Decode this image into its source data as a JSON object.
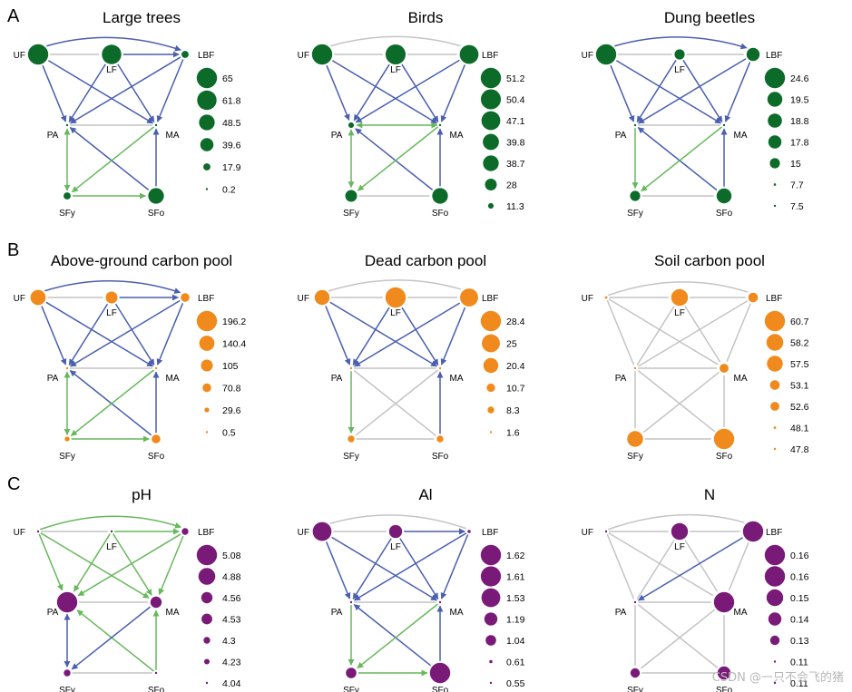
{
  "figure": {
    "section_labels": [
      "A",
      "B",
      "C"
    ],
    "node_labels": {
      "UF": "UF",
      "LF": "LF",
      "LBF": "LBF",
      "PA": "PA",
      "MA": "MA",
      "SFy": "SFy",
      "SFo": "SFo"
    },
    "watermark": "CSDN @一只不会飞的猪"
  },
  "colors": {
    "green": "#0d6b2a",
    "orange": "#f08a1c",
    "purple": "#7a1a78",
    "blue_edge": "#4a5fae",
    "green_edge": "#67b85c",
    "grey_edge": "#c4c4c4"
  },
  "panels": [
    {
      "title": "Large trees",
      "color": "green",
      "node_sizes": {
        "UF": 65,
        "LF": 61.8,
        "LBF": 17.9,
        "PA": 0.2,
        "MA": 0.2,
        "SFy": 17.9,
        "SFo": 48.5
      },
      "legend": [
        "65",
        "61.8",
        "48.5",
        "39.6",
        "17.9",
        "0.2"
      ],
      "edges": [
        [
          "UF",
          "LBF",
          "blue",
          "curve"
        ],
        [
          "UF",
          "LF",
          "grey",
          "line"
        ],
        [
          "LF",
          "LBF",
          "blue",
          "line"
        ],
        [
          "UF",
          "PA",
          "blue",
          "line"
        ],
        [
          "UF",
          "MA",
          "blue",
          "line"
        ],
        [
          "LF",
          "PA",
          "blue",
          "line"
        ],
        [
          "LF",
          "MA",
          "blue",
          "line"
        ],
        [
          "LBF",
          "PA",
          "blue",
          "line"
        ],
        [
          "LBF",
          "MA",
          "blue",
          "line"
        ],
        [
          "PA",
          "MA",
          "grey",
          "line"
        ],
        [
          "SFy",
          "PA",
          "green",
          "both"
        ],
        [
          "SFo",
          "PA",
          "blue",
          "line"
        ],
        [
          "SFo",
          "MA",
          "blue",
          "line"
        ],
        [
          "MA",
          "SFy",
          "green",
          "line"
        ],
        [
          "SFy",
          "SFo",
          "green",
          "line"
        ]
      ]
    },
    {
      "title": "Birds",
      "color": "green",
      "node_sizes": {
        "UF": 51.2,
        "LF": 50.4,
        "LBF": 47.1,
        "PA": 11.3,
        "MA": 2,
        "SFy": 28,
        "SFo": 38.7
      },
      "legend": [
        "51.2",
        "50.4",
        "47.1",
        "39.8",
        "38.7",
        "28",
        "11.3"
      ],
      "edges": [
        [
          "UF",
          "LBF",
          "grey",
          "curve"
        ],
        [
          "UF",
          "LF",
          "grey",
          "line"
        ],
        [
          "LF",
          "LBF",
          "grey",
          "line"
        ],
        [
          "UF",
          "PA",
          "blue",
          "line"
        ],
        [
          "UF",
          "MA",
          "blue",
          "line"
        ],
        [
          "LF",
          "PA",
          "blue",
          "line"
        ],
        [
          "LF",
          "MA",
          "blue",
          "line"
        ],
        [
          "LBF",
          "PA",
          "blue",
          "line"
        ],
        [
          "LBF",
          "MA",
          "blue",
          "line"
        ],
        [
          "MA",
          "PA",
          "green",
          "both"
        ],
        [
          "PA",
          "SFy",
          "green",
          "both"
        ],
        [
          "SFo",
          "PA",
          "blue",
          "line"
        ],
        [
          "SFo",
          "MA",
          "blue",
          "line"
        ],
        [
          "MA",
          "SFy",
          "green",
          "line"
        ],
        [
          "SFy",
          "SFo",
          "grey",
          "line"
        ]
      ]
    },
    {
      "title": "Dung beetles",
      "color": "green",
      "node_sizes": {
        "UF": 24.6,
        "LF": 15,
        "LBF": 17.8,
        "PA": 7.5,
        "MA": 7.5,
        "SFy": 15,
        "SFo": 19.5
      },
      "legend": [
        "24.6",
        "19.5",
        "18.8",
        "17.8",
        "15",
        "7.7",
        "7.5"
      ],
      "edges": [
        [
          "UF",
          "LBF",
          "blue",
          "curve"
        ],
        [
          "UF",
          "LF",
          "grey",
          "line"
        ],
        [
          "LF",
          "LBF",
          "grey",
          "line"
        ],
        [
          "UF",
          "PA",
          "blue",
          "line"
        ],
        [
          "UF",
          "MA",
          "blue",
          "line"
        ],
        [
          "LF",
          "PA",
          "blue",
          "line"
        ],
        [
          "LF",
          "MA",
          "blue",
          "line"
        ],
        [
          "LBF",
          "PA",
          "blue",
          "line"
        ],
        [
          "LBF",
          "MA",
          "blue",
          "line"
        ],
        [
          "PA",
          "MA",
          "grey",
          "line"
        ],
        [
          "PA",
          "SFy",
          "green",
          "line"
        ],
        [
          "SFo",
          "PA",
          "blue",
          "line"
        ],
        [
          "SFo",
          "MA",
          "blue",
          "line"
        ],
        [
          "MA",
          "SFy",
          "green",
          "line"
        ],
        [
          "SFy",
          "SFo",
          "grey",
          "line"
        ]
      ]
    },
    {
      "title": "Above-ground carbon pool",
      "color": "orange",
      "node_sizes": {
        "UF": 140.4,
        "LF": 105,
        "LBF": 70.8,
        "PA": 0.5,
        "MA": 0.5,
        "SFy": 29.6,
        "SFo": 70.8
      },
      "legend": [
        "196.2",
        "140.4",
        "105",
        "70.8",
        "29.6",
        "0.5"
      ],
      "edges": [
        [
          "UF",
          "LBF",
          "blue",
          "curve"
        ],
        [
          "UF",
          "LF",
          "grey",
          "line"
        ],
        [
          "LF",
          "LBF",
          "blue",
          "line"
        ],
        [
          "UF",
          "PA",
          "blue",
          "line"
        ],
        [
          "UF",
          "MA",
          "blue",
          "line"
        ],
        [
          "LF",
          "PA",
          "blue",
          "line"
        ],
        [
          "LF",
          "MA",
          "blue",
          "line"
        ],
        [
          "LBF",
          "PA",
          "blue",
          "line"
        ],
        [
          "LBF",
          "MA",
          "blue",
          "line"
        ],
        [
          "PA",
          "MA",
          "grey",
          "line"
        ],
        [
          "SFy",
          "PA",
          "green",
          "both"
        ],
        [
          "SFo",
          "PA",
          "blue",
          "line"
        ],
        [
          "SFo",
          "MA",
          "blue",
          "line"
        ],
        [
          "MA",
          "SFy",
          "green",
          "line"
        ],
        [
          "SFy",
          "SFo",
          "green",
          "line"
        ]
      ]
    },
    {
      "title": "Dead carbon pool",
      "color": "orange",
      "node_sizes": {
        "UF": 20.4,
        "LF": 28.4,
        "LBF": 25,
        "PA": 1.6,
        "MA": 1.6,
        "SFy": 8.3,
        "SFo": 8.3
      },
      "legend": [
        "28.4",
        "25",
        "20.4",
        "10.7",
        "8.3",
        "1.6"
      ],
      "edges": [
        [
          "UF",
          "LBF",
          "grey",
          "curve"
        ],
        [
          "UF",
          "LF",
          "grey",
          "line"
        ],
        [
          "LF",
          "LBF",
          "grey",
          "line"
        ],
        [
          "UF",
          "PA",
          "blue",
          "line"
        ],
        [
          "UF",
          "MA",
          "blue",
          "line"
        ],
        [
          "LF",
          "PA",
          "blue",
          "line"
        ],
        [
          "LF",
          "MA",
          "blue",
          "line"
        ],
        [
          "LBF",
          "PA",
          "blue",
          "line"
        ],
        [
          "LBF",
          "MA",
          "blue",
          "line"
        ],
        [
          "PA",
          "MA",
          "grey",
          "line"
        ],
        [
          "PA",
          "SFy",
          "green",
          "line"
        ],
        [
          "SFo",
          "PA",
          "grey",
          "line"
        ],
        [
          "SFo",
          "MA",
          "blue",
          "line"
        ],
        [
          "MA",
          "SFy",
          "grey",
          "line"
        ],
        [
          "SFy",
          "SFo",
          "grey",
          "line"
        ]
      ]
    },
    {
      "title": "Soil carbon pool",
      "color": "orange",
      "node_sizes": {
        "UF": 48.1,
        "LF": 58.2,
        "LBF": 53.1,
        "PA": 47.8,
        "MA": 52.6,
        "SFy": 57.5,
        "SFo": 60.7
      },
      "legend": [
        "60.7",
        "58.2",
        "57.5",
        "53.1",
        "52.6",
        "48.1",
        "47.8"
      ],
      "edges": [
        [
          "UF",
          "LBF",
          "grey",
          "curve"
        ],
        [
          "UF",
          "LF",
          "grey",
          "line"
        ],
        [
          "LF",
          "LBF",
          "grey",
          "line"
        ],
        [
          "UF",
          "PA",
          "grey",
          "line"
        ],
        [
          "UF",
          "MA",
          "grey",
          "line"
        ],
        [
          "LF",
          "PA",
          "grey",
          "line"
        ],
        [
          "LF",
          "MA",
          "grey",
          "line"
        ],
        [
          "LBF",
          "PA",
          "grey",
          "line"
        ],
        [
          "LBF",
          "MA",
          "grey",
          "line"
        ],
        [
          "PA",
          "MA",
          "grey",
          "line"
        ],
        [
          "PA",
          "SFy",
          "grey",
          "line"
        ],
        [
          "SFo",
          "PA",
          "grey",
          "line"
        ],
        [
          "SFo",
          "MA",
          "grey",
          "line"
        ],
        [
          "MA",
          "SFy",
          "grey",
          "line"
        ],
        [
          "SFy",
          "SFo",
          "grey",
          "line"
        ]
      ]
    },
    {
      "title": "pH",
      "color": "purple",
      "node_sizes": {
        "UF": 4.04,
        "LF": 4.04,
        "LBF": 4.3,
        "PA": 5.08,
        "MA": 4.56,
        "SFy": 4.3,
        "SFo": 4.04
      },
      "legend": [
        "5.08",
        "4.88",
        "4.56",
        "4.53",
        "4.3",
        "4.23",
        "4.04"
      ],
      "edges": [
        [
          "UF",
          "LBF",
          "green",
          "curve"
        ],
        [
          "UF",
          "LF",
          "grey",
          "line"
        ],
        [
          "LF",
          "LBF",
          "green",
          "line"
        ],
        [
          "UF",
          "PA",
          "green",
          "line"
        ],
        [
          "UF",
          "MA",
          "green",
          "line"
        ],
        [
          "LF",
          "PA",
          "green",
          "line"
        ],
        [
          "LF",
          "MA",
          "green",
          "line"
        ],
        [
          "LBF",
          "PA",
          "green",
          "line"
        ],
        [
          "LBF",
          "MA",
          "green",
          "line"
        ],
        [
          "PA",
          "MA",
          "grey",
          "line"
        ],
        [
          "PA",
          "SFy",
          "blue",
          "both"
        ],
        [
          "SFo",
          "PA",
          "green",
          "line"
        ],
        [
          "SFo",
          "MA",
          "green",
          "line"
        ],
        [
          "MA",
          "SFy",
          "blue",
          "line"
        ],
        [
          "SFy",
          "SFo",
          "grey",
          "line"
        ]
      ]
    },
    {
      "title": "Al",
      "color": "purple",
      "node_sizes": {
        "UF": 1.53,
        "LF": 1.19,
        "LBF": 0.61,
        "PA": 0.55,
        "MA": 0.55,
        "SFy": 1.04,
        "SFo": 1.62
      },
      "legend": [
        "1.62",
        "1.61",
        "1.53",
        "1.19",
        "1.04",
        "0.61",
        "0.55"
      ],
      "edges": [
        [
          "UF",
          "LBF",
          "grey",
          "curve"
        ],
        [
          "UF",
          "LF",
          "grey",
          "line"
        ],
        [
          "LF",
          "LBF",
          "blue",
          "line"
        ],
        [
          "UF",
          "PA",
          "blue",
          "line"
        ],
        [
          "UF",
          "MA",
          "blue",
          "line"
        ],
        [
          "LF",
          "PA",
          "blue",
          "line"
        ],
        [
          "LF",
          "MA",
          "blue",
          "line"
        ],
        [
          "LBF",
          "PA",
          "blue",
          "line"
        ],
        [
          "LBF",
          "MA",
          "blue",
          "line"
        ],
        [
          "PA",
          "MA",
          "grey",
          "line"
        ],
        [
          "PA",
          "SFy",
          "green",
          "line"
        ],
        [
          "SFo",
          "PA",
          "blue",
          "line"
        ],
        [
          "SFo",
          "MA",
          "blue",
          "line"
        ],
        [
          "MA",
          "SFy",
          "green",
          "line"
        ],
        [
          "SFy",
          "SFo",
          "green",
          "line"
        ]
      ]
    },
    {
      "title": "N",
      "color": "purple",
      "node_sizes": {
        "UF": 0.11,
        "LF": 0.15,
        "LBF": 0.16,
        "PA": 0.11,
        "MA": 0.16,
        "SFy": 0.13,
        "SFo": 0.14
      },
      "legend": [
        "0.16",
        "0.16",
        "0.15",
        "0.14",
        "0.13",
        "0.11",
        "0.11"
      ],
      "edges": [
        [
          "UF",
          "LBF",
          "grey",
          "curve"
        ],
        [
          "UF",
          "LF",
          "grey",
          "line"
        ],
        [
          "LF",
          "LBF",
          "grey",
          "line"
        ],
        [
          "UF",
          "PA",
          "grey",
          "line"
        ],
        [
          "UF",
          "MA",
          "grey",
          "line"
        ],
        [
          "LF",
          "PA",
          "grey",
          "line"
        ],
        [
          "LF",
          "MA",
          "grey",
          "line"
        ],
        [
          "LBF",
          "PA",
          "blue",
          "line"
        ],
        [
          "LBF",
          "MA",
          "grey",
          "line"
        ],
        [
          "PA",
          "MA",
          "grey",
          "line"
        ],
        [
          "PA",
          "SFy",
          "grey",
          "line"
        ],
        [
          "SFo",
          "PA",
          "grey",
          "line"
        ],
        [
          "SFo",
          "MA",
          "grey",
          "line"
        ],
        [
          "MA",
          "SFy",
          "grey",
          "line"
        ],
        [
          "SFy",
          "SFo",
          "grey",
          "line"
        ]
      ]
    }
  ]
}
